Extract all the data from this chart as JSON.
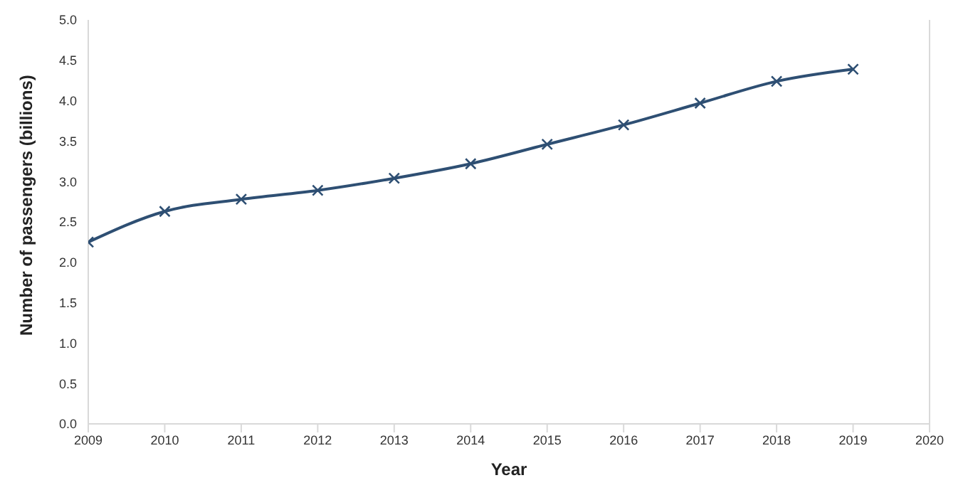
{
  "chart_data": {
    "type": "line",
    "xlabel": "Year",
    "ylabel": "Number of passengers (billions)",
    "x": [
      2009,
      2010,
      2011,
      2012,
      2013,
      2014,
      2015,
      2016,
      2017,
      2018,
      2019
    ],
    "series": [
      {
        "color": "#2e4f73",
        "values": [
          2.25,
          2.63,
          2.78,
          2.89,
          3.04,
          3.22,
          3.46,
          3.7,
          3.97,
          4.24,
          4.39
        ]
      }
    ],
    "xlim": [
      2009,
      2020
    ],
    "xticks": [
      2009,
      2010,
      2011,
      2012,
      2013,
      2014,
      2015,
      2016,
      2017,
      2018,
      2019,
      2020
    ],
    "ylim": [
      0,
      5
    ],
    "yticks": [
      {
        "value": 0,
        "label": "0.0"
      },
      0.5,
      {
        "value": 1,
        "label": "1.0"
      },
      1.5,
      {
        "value": 2,
        "label": "2.0"
      },
      2.5,
      {
        "value": 3,
        "label": "3.0"
      },
      3.5,
      {
        "value": 4,
        "label": "4.0"
      },
      4.5,
      {
        "value": 5,
        "label": "5.0"
      }
    ],
    "grid": false,
    "marker": "cross",
    "line_style": "solid"
  }
}
